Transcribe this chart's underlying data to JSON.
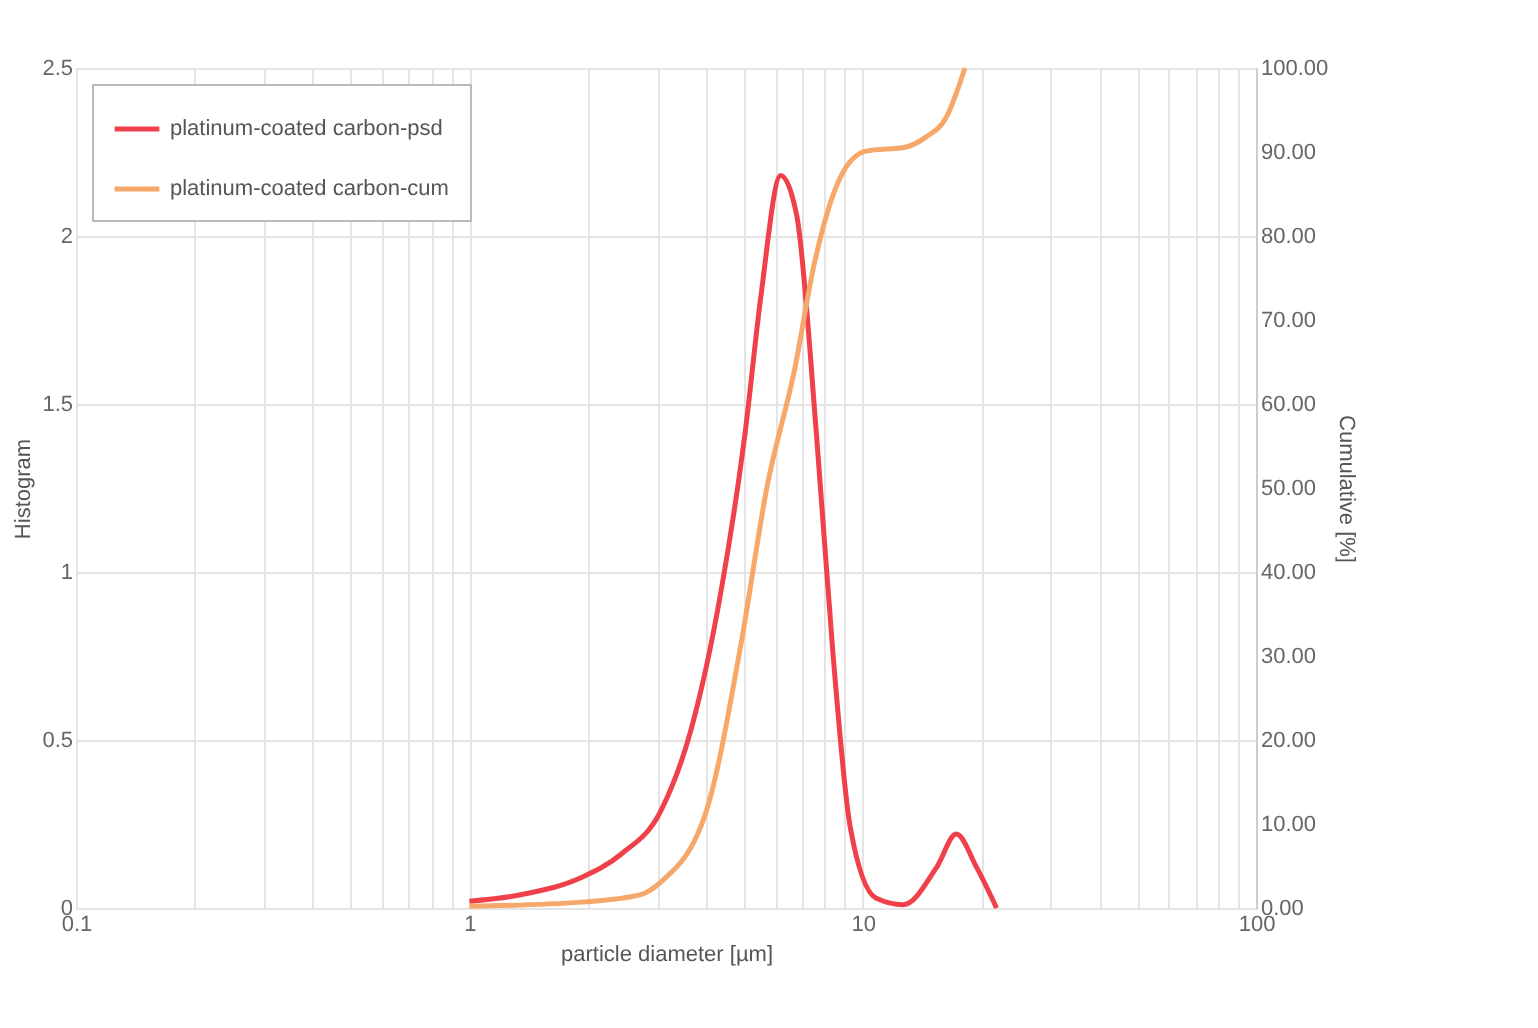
{
  "chart_data": {
    "type": "line",
    "xlabel": "particle diameter [µm]",
    "ylabel": "Histogram",
    "y2label": "Cumulative [%]",
    "log": "x",
    "grid": true,
    "legend": "top left",
    "xlim": [
      0.1,
      100
    ],
    "xticks": [
      0.1,
      {
        "value": 0.2,
        "label": null
      },
      {
        "value": 0.3,
        "label": null
      },
      {
        "value": 0.4,
        "label": null
      },
      {
        "value": 0.5,
        "label": null
      },
      {
        "value": 0.6,
        "label": null
      },
      {
        "value": 0.7,
        "label": null
      },
      {
        "value": 0.8,
        "label": null
      },
      {
        "value": 0.9,
        "label": null
      },
      1,
      {
        "value": 2,
        "label": null
      },
      {
        "value": 3,
        "label": null
      },
      {
        "value": 4,
        "label": null
      },
      {
        "value": 5,
        "label": null
      },
      {
        "value": 6,
        "label": null
      },
      {
        "value": 7,
        "label": null
      },
      {
        "value": 8,
        "label": null
      },
      {
        "value": 9,
        "label": null
      },
      10,
      {
        "value": 20,
        "label": null
      },
      {
        "value": 30,
        "label": null
      },
      {
        "value": 40,
        "label": null
      },
      {
        "value": 50,
        "label": null
      },
      {
        "value": 60,
        "label": null
      },
      {
        "value": 70,
        "label": null
      },
      {
        "value": 80,
        "label": null
      },
      {
        "value": 90,
        "label": null
      },
      100
    ],
    "ylim": [
      0,
      2.5
    ],
    "yticks": [
      0,
      0.5,
      1,
      1.5,
      2,
      2.5
    ],
    "y2lim": [
      0,
      100
    ],
    "y2ticks": [
      {
        "value": 0,
        "label": "0.00"
      },
      {
        "value": 10,
        "label": "10.00"
      },
      {
        "value": 20,
        "label": "20.00"
      },
      {
        "value": 30,
        "label": "30.00"
      },
      {
        "value": 40,
        "label": "40.00"
      },
      {
        "value": 50,
        "label": "50.00"
      },
      {
        "value": 60,
        "label": "60.00"
      },
      {
        "value": 70,
        "label": "70.00"
      },
      {
        "value": 80,
        "label": "80.00"
      },
      {
        "value": 90,
        "label": "90.00"
      },
      {
        "value": 100,
        "label": "100.00"
      }
    ],
    "series": [
      {
        "name": "platinum-coated carbon-psd",
        "color": "#f0404a",
        "x": [
          1.0,
          1.36,
          1.92,
          2.43,
          3.07,
          3.66,
          4.36,
          5.02,
          5.51,
          6.19,
          6.8,
          7.63,
          8.4,
          9.3,
          10.8,
          12.7,
          15.4,
          17.3,
          19.5,
          21.9
        ],
        "values": [
          0.02,
          0.04,
          0.09,
          0.16,
          0.29,
          0.53,
          0.94,
          1.41,
          1.82,
          2.18,
          2.06,
          1.41,
          0.76,
          0.24,
          0.03,
          0.01,
          0.12,
          0.22,
          0.12,
          0.0
        ]
      },
      {
        "name": "platinum-coated carbon-cum",
        "color": "#f5a86a",
        "axis": "y2",
        "x": [
          1.0,
          1.92,
          2.73,
          3.07,
          4.02,
          4.9,
          5.71,
          6.72,
          7.55,
          8.8,
          10.2,
          12.9,
          14.5,
          16.3,
          18.2
        ],
        "values": [
          0.2,
          0.7,
          1.6,
          3.1,
          11.8,
          31.3,
          50.1,
          64.2,
          76.9,
          87.1,
          90.1,
          90.6,
          91.8,
          94.1,
          100.0
        ]
      }
    ]
  }
}
